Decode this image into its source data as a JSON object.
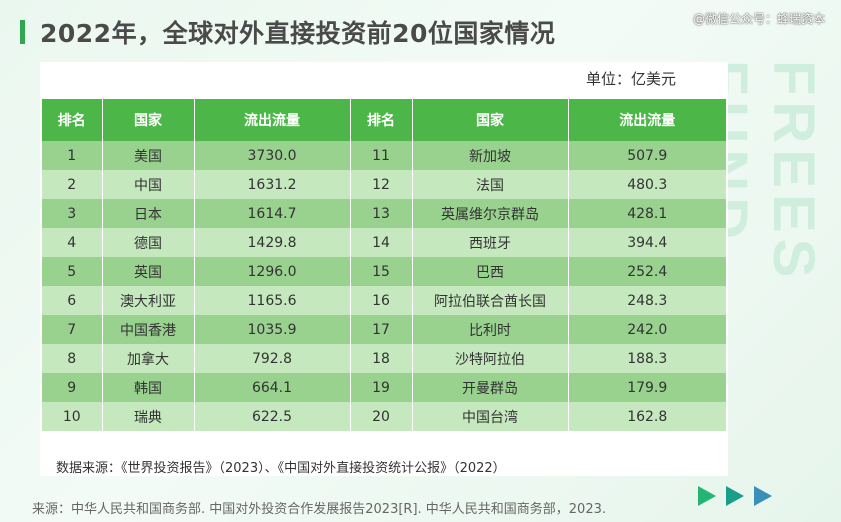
{
  "title": "2022年，全球对外直接投资前20位国家情况",
  "wechat": "@微信公众号：蜂瑞资本",
  "watermark": "FREES FUND",
  "unit": "单位：亿美元",
  "headers": [
    "排名",
    "国家",
    "流出流量",
    "排名",
    "国家",
    "流出流量"
  ],
  "rows": [
    [
      "1",
      "美国",
      "3730.0",
      "11",
      "新加坡",
      "507.9"
    ],
    [
      "2",
      "中国",
      "1631.2",
      "12",
      "法国",
      "480.3"
    ],
    [
      "3",
      "日本",
      "1614.7",
      "13",
      "英属维尔京群岛",
      "428.1"
    ],
    [
      "4",
      "德国",
      "1429.8",
      "14",
      "西班牙",
      "394.4"
    ],
    [
      "5",
      "英国",
      "1296.0",
      "15",
      "巴西",
      "252.4"
    ],
    [
      "6",
      "澳大利亚",
      "1165.6",
      "16",
      "阿拉伯联合酋长国",
      "248.3"
    ],
    [
      "7",
      "中国香港",
      "1035.9",
      "17",
      "比利时",
      "242.0"
    ],
    [
      "8",
      "加拿大",
      "792.8",
      "18",
      "沙特阿拉伯",
      "188.3"
    ],
    [
      "9",
      "韩国",
      "664.1",
      "19",
      "开曼群岛",
      "179.9"
    ],
    [
      "10",
      "瑞典",
      "622.5",
      "20",
      "中国台湾",
      "162.8"
    ]
  ],
  "note": "数据来源：《世界投资报告》（2023）、《中国对外直接投资统计公报》（2022）",
  "source": "来源：中华人民共和国商务部. 中国对外投资合作发展报告2023[R]. 中华人民共和国商务部，2023.",
  "colors": {
    "accent": "#2fa84f",
    "header": "#4cb748",
    "row_dark": "#98d28e",
    "row_light": "#c5e8be"
  }
}
